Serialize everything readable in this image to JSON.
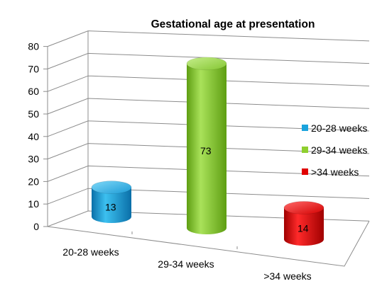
{
  "chart_data": {
    "type": "bar",
    "title": "Gestational age at presentation",
    "categories": [
      "20-28 weeks",
      "29-34 weeks",
      ">34 weeks"
    ],
    "values": [
      13,
      73,
      14
    ],
    "colors": [
      "#1aa3dd",
      "#8fcf2f",
      "#e00000"
    ],
    "ylim": [
      0,
      80
    ],
    "yticks": [
      "0",
      "10",
      "20",
      "30",
      "40",
      "50",
      "60",
      "70",
      "80"
    ],
    "legend": [
      "20-28 weeks",
      "29-34 weeks",
      ">34 weeks"
    ],
    "legend_position": "right",
    "grid": true,
    "style": "3d-cylinder"
  }
}
